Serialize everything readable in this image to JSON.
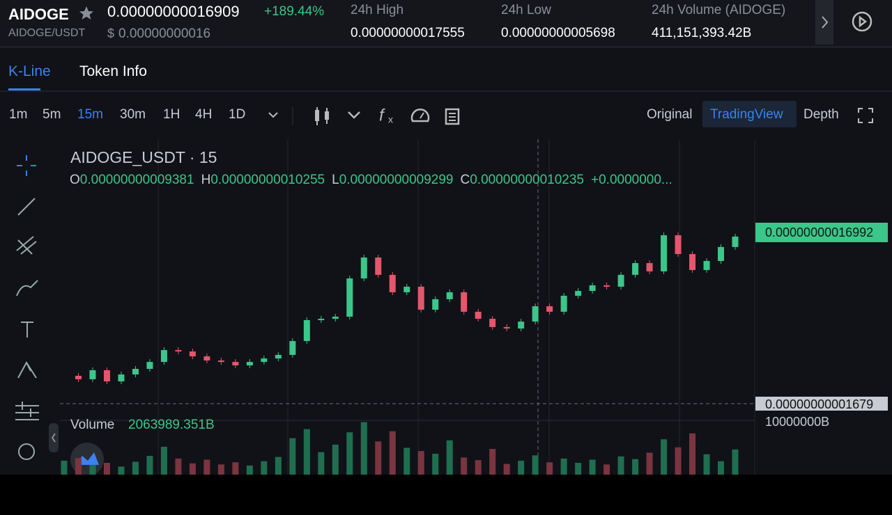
{
  "header": {
    "symbol": "AIDOGE",
    "pair": "AIDOGE/USDT",
    "price": "0.00000000016909",
    "change": "+189.44%",
    "currency": "$",
    "fiat_price": "0.00000000016",
    "stats": [
      {
        "label": "24h High",
        "value": "0.00000000017555"
      },
      {
        "label": "24h Low",
        "value": "0.00000000005698"
      },
      {
        "label": "24h Volume (AIDOGE)",
        "value": "411,151,393.42B"
      }
    ]
  },
  "tabs": [
    "K-Line",
    "Token Info"
  ],
  "intervals": [
    "1m",
    "5m",
    "15m",
    "30m",
    "1H",
    "4H",
    "1D"
  ],
  "views": [
    "Original",
    "TradingView",
    "Depth"
  ],
  "chart": {
    "title": "AIDOGE_USDT · 15",
    "ohlc": [
      {
        "key": "O",
        "value": "0.00000000009381"
      },
      {
        "key": "H",
        "value": "0.00000000010255"
      },
      {
        "key": "L",
        "value": "0.00000000009299"
      },
      {
        "key": "C",
        "value": "0.00000000010235"
      }
    ],
    "change": "+0.0000000...",
    "price_ticks": [
      {
        "value": 1.6992e-10,
        "label": "0.00000000016992"
      },
      {
        "value": 1.679e-11,
        "label": "0.00000000001679"
      }
    ],
    "closes": [
      4.17e-11,
      3.86e-11,
      4.67e-11,
      3.67e-11,
      4.29e-11,
      4.79e-11,
      5.41e-11,
      6.47e-11,
      6.35e-11,
      5.91e-11,
      5.54e-11,
      5.41e-11,
      5.1e-11,
      5.41e-11,
      5.72e-11,
      6.04e-11,
      7.28e-11,
      9.15e-11,
      9.27e-11,
      9.46e-11,
      1.288e-10,
      1.475e-10,
      1.32e-10,
      1.164e-10,
      1.214e-10,
      1.008e-10,
      1.102e-10,
      1.164e-10,
      9.9e-11,
      9.27e-11,
      8.53e-11,
      8.4e-11,
      9.02e-11,
      1.039e-10,
      9.9e-11,
      1.133e-10,
      1.176e-10,
      1.226e-10,
      1.214e-10,
      1.32e-10,
      1.425e-10,
      1.351e-10,
      1.674e-10,
      1.506e-10,
      1.363e-10,
      1.444e-10,
      1.569e-10,
      1.662e-10
    ],
    "volume_label": "Volume",
    "volume_value": "2063989.351B",
    "volume_ticks": [
      {
        "value": 10000000,
        "label": "10000000B"
      }
    ],
    "volumes": [
      2600000,
      3100000,
      1800000,
      2200000,
      1500000,
      2400000,
      3500000,
      5200000,
      3000000,
      2100000,
      2800000,
      1900000,
      2300000,
      1700000,
      2500000,
      3300000,
      6800000,
      8500000,
      4200000,
      5600000,
      7900000,
      9800000,
      6200000,
      8100000,
      5000000,
      4400000,
      3900000,
      6400000,
      3200000,
      2700000,
      4800000,
      2000000,
      2600000,
      3600000,
      2300000,
      3000000,
      2200000,
      2800000,
      1900000,
      3400000,
      2900000,
      4100000,
      6600000,
      5100000,
      7700000,
      3800000,
      2500000,
      4700000
    ]
  }
}
